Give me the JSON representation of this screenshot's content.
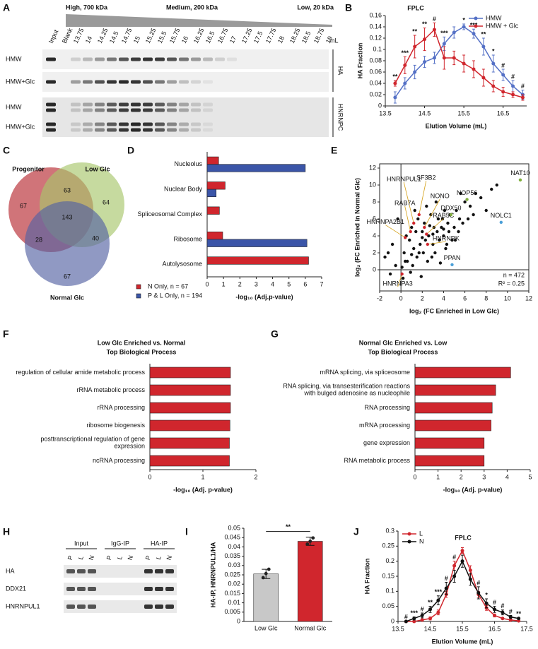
{
  "figure": {
    "panel_labels": [
      "A",
      "B",
      "C",
      "D",
      "E",
      "F",
      "G",
      "H",
      "I",
      "J"
    ]
  },
  "blot_a": {
    "headers": [
      "High, 700 kDa",
      "Medium, 200 kDa",
      "Low, 20 kDa"
    ],
    "lanes": [
      "Input",
      "Blank",
      "13.75",
      "14",
      "14.25",
      "14.5",
      "14.75",
      "15",
      "15.25",
      "15.5",
      "15.75",
      "16",
      "16.25",
      "16.5",
      "16.75",
      "17",
      "17.25",
      "17.5",
      "17.75",
      "18",
      "18.25",
      "18.5",
      "18.75",
      "19"
    ],
    "unit": "mL",
    "rows": [
      "HMW",
      "HMW+Glc",
      "HMW",
      "HMW+Glc"
    ],
    "groups": [
      "HA",
      "HNRNPC"
    ]
  },
  "venn": {
    "sets": [
      "Progenitor",
      "Low Glc",
      "Normal Glc"
    ],
    "counts": [
      67,
      64,
      67,
      63,
      28,
      40,
      143
    ]
  },
  "blot_h": {
    "groups": [
      "Input",
      "IgG-IP",
      "HA-IP"
    ],
    "lanes": [
      "P",
      "L",
      "N",
      "P",
      "L",
      "N",
      "P",
      "L",
      "N"
    ],
    "rows": [
      "HA",
      "DDX21",
      "HNRNPUL1"
    ]
  },
  "chart_data": [
    {
      "type": "line",
      "title": "FPLC",
      "x_label": "Elution Volume (mL)",
      "y_label": "HA Fraction",
      "x": [
        13.75,
        14,
        14.25,
        14.5,
        14.75,
        15,
        15.25,
        15.5,
        15.75,
        16,
        16.25,
        16.5,
        16.75,
        17
      ],
      "xlim": [
        13.5,
        17.1
      ],
      "xticks": [
        13.5,
        14.5,
        15.5,
        16.5
      ],
      "ylim": [
        0,
        0.16
      ],
      "yticks": [
        0,
        0.02,
        0.04,
        0.06,
        0.08,
        0.1,
        0.12,
        0.14,
        0.16
      ],
      "legend": "upper right",
      "series": [
        {
          "name": "HMW",
          "color": "#5470c6",
          "values": [
            0.015,
            0.04,
            0.06,
            0.078,
            0.085,
            0.11,
            0.13,
            0.14,
            0.128,
            0.105,
            0.075,
            0.055,
            0.035,
            0.02
          ],
          "errors": [
            0.01,
            0.01,
            0.012,
            0.01,
            0.01,
            0.012,
            0.01,
            0.005,
            0.008,
            0.015,
            0.015,
            0.01,
            0.01,
            0.008
          ]
        },
        {
          "name": "HMW + Glc",
          "color": "#d0262d",
          "values": [
            0.04,
            0.072,
            0.105,
            0.118,
            0.135,
            0.085,
            0.085,
            0.075,
            0.065,
            0.05,
            0.035,
            0.025,
            0.02,
            0.015
          ],
          "errors": [
            0.005,
            0.015,
            0.02,
            0.02,
            0.012,
            0.02,
            0.012,
            0.015,
            0.015,
            0.015,
            0.01,
            0.008,
            0.005,
            0.005
          ]
        }
      ],
      "annotations": [
        {
          "text": "**",
          "x": 13.75
        },
        {
          "text": "***",
          "x": 14
        },
        {
          "text": "**",
          "x": 14.25
        },
        {
          "text": "**",
          "x": 14.5
        },
        {
          "text": "#",
          "x": 14.75
        },
        {
          "text": "***",
          "x": 15
        },
        {
          "text": "*",
          "x": 15.5
        },
        {
          "text": "***",
          "x": 15.75
        },
        {
          "text": "**",
          "x": 16
        },
        {
          "text": "*",
          "x": 16.25
        },
        {
          "text": "#",
          "x": 16.5
        },
        {
          "text": "#",
          "x": 16.75
        },
        {
          "text": "#",
          "x": 17
        }
      ]
    },
    {
      "type": "hbar",
      "x_label": "-log₁₀ (Adj.p-value)",
      "categories": [
        "Nucleolus",
        "Nuclear Body",
        "Spliceosomal Complex",
        "Ribosome",
        "Autolysosome"
      ],
      "xlim": [
        0,
        7
      ],
      "xticks": [
        0,
        1,
        2,
        3,
        4,
        5,
        6,
        7
      ],
      "legend": "lower left",
      "series": [
        {
          "name": "N Only, n = 67",
          "color": "#d0262d",
          "values": [
            0.7,
            1.1,
            0.75,
            0.95,
            6.2
          ]
        },
        {
          "name": "P & L Only, n = 194",
          "color": "#3b55a8",
          "values": [
            6.0,
            0.55,
            null,
            6.1,
            null
          ]
        }
      ]
    },
    {
      "type": "scatter",
      "x_label": "log₂ (FC Enriched in Low Glc)",
      "y_label": "log₂ (FC Enriched in Normal Glc)",
      "xlim": [
        -2,
        12
      ],
      "xticks": [
        -2,
        0,
        2,
        4,
        6,
        8,
        10,
        12
      ],
      "ylim": [
        -2.5,
        12.5
      ],
      "yticks": [
        0,
        2,
        4,
        6,
        8,
        10,
        12
      ],
      "annotations": [
        "n = 472",
        "R² = 0.25"
      ],
      "series": [
        {
          "color": "#111111",
          "x": [
            -1.5,
            -1,
            -0.8,
            -0.5,
            -0.3,
            0.2,
            0.3,
            0.5,
            0.6,
            0.8,
            1,
            1.1,
            1.2,
            1.4,
            1.5,
            1.6,
            1.8,
            2,
            2.1,
            2.2,
            2.3,
            2.5,
            2.6,
            2.8,
            3,
            3.1,
            3.2,
            3.4,
            3.5,
            3.6,
            3.8,
            4,
            4.1,
            4.2,
            4.4,
            4.5,
            4.6,
            4.8,
            5,
            5.2,
            5.4,
            5.5,
            5.8,
            6,
            6.3,
            6.5,
            7,
            7.5,
            8,
            8.5,
            9,
            -1.2,
            0.4,
            0.9,
            1.3,
            1.7,
            2.4,
            2.9,
            3.3,
            3.7,
            4.3,
            5.1,
            5.6,
            6.8,
            1.9,
            2.7,
            3.9,
            0.1,
            1.0,
            2.0,
            3.0,
            4.0
          ],
          "values": [
            1.5,
            -0.5,
            3,
            0.5,
            6,
            -1,
            2,
            4,
            1,
            3.5,
            5,
            0.5,
            2.5,
            4.5,
            1.5,
            6,
            3,
            4.5,
            2,
            5.5,
            3.5,
            1,
            4,
            6.5,
            3,
            5,
            2,
            4.5,
            6,
            3.5,
            5,
            4,
            7,
            2.5,
            5.5,
            4.5,
            6.5,
            3.5,
            5,
            7,
            4.5,
            6,
            5.5,
            8,
            6,
            7.5,
            9,
            8.5,
            7,
            9.5,
            10,
            2,
            1,
            -0.3,
            7,
            2,
            7.5,
            1.5,
            8,
            0.8,
            3,
            3.5,
            9,
            6.5,
            -0.8,
            5.2,
            6,
            0.3,
            1.8,
            3.8,
            4.2,
            4.8
          ]
        },
        {
          "color": "#d0262d",
          "x": [
            1.7,
            1.2,
            2.2,
            0.9,
            2.4,
            0.4,
            2.5,
            0.1
          ],
          "values": [
            6.5,
            5.5,
            5.0,
            4.5,
            4.2,
            3.8,
            3.0,
            -0.5
          ],
          "labels": [
            "SF3B2",
            "HNRNPUL1",
            "NONO",
            "RAB7A",
            "RAB5C",
            "HNRNPA2B1",
            "HNRNPK",
            "HNRNPA3"
          ]
        },
        {
          "color": "#7fae3c",
          "x": [
            11.2,
            6.2,
            4.7
          ],
          "values": [
            10.6,
            8.3,
            6.5
          ],
          "labels": [
            "NAT10",
            "NOP56",
            "DDX50"
          ]
        },
        {
          "color": "#4a9fd8",
          "x": [
            9.4,
            4.8
          ],
          "values": [
            5.6,
            0.6
          ],
          "labels": [
            "NOLC1",
            "PPAN"
          ]
        }
      ]
    },
    {
      "type": "hbar",
      "title": [
        "Low Glc Enriched vs. Normal",
        "Top Biological Process"
      ],
      "x_label": "-log₁₀ (Adj. p-value)",
      "categories": [
        "regulation of cellular amide metabolic process",
        "rRNA metabolic process",
        "rRNA processing",
        "ribosome biogenesis",
        "posttranscriptional regulation of gene expression",
        "ncRNA processing"
      ],
      "values": [
        1.52,
        1.52,
        1.52,
        1.51,
        1.5,
        1.5
      ],
      "color": "#d0262d",
      "xlim": [
        0,
        2
      ],
      "xticks": [
        0,
        1,
        2
      ]
    },
    {
      "type": "hbar",
      "title": [
        "Normal Glc Enriched vs. Low",
        "Top Biological Process"
      ],
      "x_label": "-log₁₀ (Adj. p-value)",
      "categories": [
        "mRNA splicing, via spliceosome",
        "RNA splicing, via transesterification reactions with bulged adenosine as nucleophile",
        "RNA processing",
        "mRNA processing",
        "gene expression",
        "RNA metabolic process"
      ],
      "values": [
        4.15,
        3.5,
        3.35,
        3.3,
        3.0,
        3.0
      ],
      "color": "#d0262d",
      "xlim": [
        0,
        5
      ],
      "xticks": [
        0,
        1,
        2,
        3,
        4,
        5
      ]
    },
    {
      "type": "bar",
      "y_label": "HA-IP, HNRNPUL1/HA",
      "categories": [
        "Low Glc",
        "Normal Glc"
      ],
      "values": [
        0.0255,
        0.043
      ],
      "errors": [
        0.0025,
        0.0022
      ],
      "points": [
        [
          0.0235,
          0.0257,
          0.028
        ],
        [
          0.0415,
          0.043,
          0.0448
        ]
      ],
      "colors": [
        "#c8c8c8",
        "#d0262d"
      ],
      "ylim": [
        0,
        0.05
      ],
      "yticks": [
        0,
        0.005,
        0.01,
        0.015,
        0.02,
        0.025,
        0.03,
        0.035,
        0.04,
        0.045,
        0.05
      ],
      "annotations": [
        {
          "text": "**"
        }
      ]
    },
    {
      "type": "line",
      "title": "FPLC",
      "x_label": "Elution Volume (mL)",
      "y_label": "HA Fraction",
      "x": [
        13.75,
        14,
        14.25,
        14.5,
        14.75,
        15,
        15.25,
        15.5,
        15.75,
        16,
        16.25,
        16.5,
        16.75,
        17,
        17.25
      ],
      "xlim": [
        13.5,
        17.5
      ],
      "xticks": [
        13.5,
        14.5,
        15.5,
        16.5,
        17.5
      ],
      "ylim": [
        0,
        0.3
      ],
      "yticks": [
        0,
        0.05,
        0.1,
        0.15,
        0.2,
        0.25,
        0.3
      ],
      "legend": "upper left",
      "series": [
        {
          "name": "L",
          "color": "#d0262d",
          "values": [
            0,
            0,
            0.005,
            0.01,
            0.03,
            0.09,
            0.185,
            0.235,
            0.17,
            0.09,
            0.045,
            0.02,
            0.01,
            0.005,
            0.002
          ],
          "errors": [
            0.002,
            0.002,
            0.003,
            0.005,
            0.008,
            0.01,
            0.015,
            0.01,
            0.015,
            0.01,
            0.008,
            0.005,
            0.003,
            0.002,
            0.002
          ]
        },
        {
          "name": "N",
          "color": "#111111",
          "values": [
            0,
            0.01,
            0.02,
            0.04,
            0.07,
            0.11,
            0.15,
            0.2,
            0.14,
            0.095,
            0.06,
            0.04,
            0.03,
            0.015,
            0.01
          ],
          "errors": [
            0.002,
            0.005,
            0.008,
            0.01,
            0.015,
            0.02,
            0.02,
            0.02,
            0.02,
            0.02,
            0.015,
            0.01,
            0.008,
            0.005,
            0.003
          ]
        }
      ],
      "annotations": [
        {
          "text": "#",
          "x": 13.75
        },
        {
          "text": "***",
          "x": 14
        },
        {
          "text": "#",
          "x": 14.25
        },
        {
          "text": "**",
          "x": 14.5
        },
        {
          "text": "***",
          "x": 14.75
        },
        {
          "text": "#",
          "x": 15
        },
        {
          "text": "#",
          "x": 15.25
        },
        {
          "text": "#",
          "x": 16
        },
        {
          "text": "*",
          "x": 16.25
        },
        {
          "text": "#",
          "x": 16.5
        },
        {
          "text": "#",
          "x": 16.75
        },
        {
          "text": "#",
          "x": 17
        },
        {
          "text": "**",
          "x": 17.25
        }
      ]
    }
  ]
}
